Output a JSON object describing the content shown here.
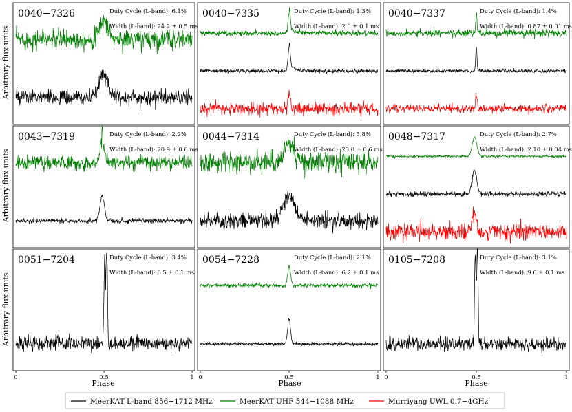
{
  "figure": {
    "ylabel": "Arbitrary flux units",
    "xlabel": "Phase",
    "xticks": [
      "0",
      "0.5",
      "1"
    ],
    "duty_label": "Duty Cycle (L-band):",
    "width_label": "Width (L-band):"
  },
  "legend": [
    {
      "name": "MeerKAT L-band 856−1712 MHz",
      "color": "#000000"
    },
    {
      "name": "MeerKAT UHF 544−1088 MHz",
      "color": "#008000"
    },
    {
      "name": "Murriyang UWL 0.7−4GHz",
      "color": "#ff0000"
    }
  ],
  "chart_data": [
    {
      "type": "line",
      "pulsar": "0040−7326",
      "duty_cycle": "6.1%",
      "width": "24.2 ± 0.5 ms",
      "xlim": [
        0,
        1
      ],
      "series": [
        {
          "band": "uhf",
          "color": "#008000",
          "peak": 0.5,
          "sigma": 0.022,
          "amp": 0.45,
          "noise": 0.32,
          "spike": 0
        },
        {
          "band": "l",
          "color": "#000000",
          "peak": 0.5,
          "sigma": 0.024,
          "amp": 0.95,
          "noise": 0.25,
          "spike": 0
        }
      ]
    },
    {
      "type": "line",
      "pulsar": "0040−7335",
      "duty_cycle": "1.3%",
      "width": "2.0 ± 0.1 ms",
      "xlim": [
        0,
        1
      ],
      "series": [
        {
          "band": "uhf",
          "color": "#008000",
          "peak": 0.5,
          "sigma": 0.006,
          "amp": 1.0,
          "noise": 0.09,
          "spike": 0,
          "tail": 0.03
        },
        {
          "band": "l",
          "color": "#000000",
          "peak": 0.5,
          "sigma": 0.006,
          "amp": 1.0,
          "noise": 0.06,
          "spike": 0,
          "tail": 0.03
        },
        {
          "band": "uwl",
          "color": "#ff0000",
          "peak": 0.5,
          "sigma": 0.006,
          "amp": 1.0,
          "noise": 0.2,
          "spike": 0
        }
      ]
    },
    {
      "type": "line",
      "pulsar": "0040−7337",
      "duty_cycle": "1.4%",
      "width": "0.87 ± 0.01 ms",
      "xlim": [
        0,
        1
      ],
      "series": [
        {
          "band": "uhf",
          "color": "#008000",
          "peak": 0.5,
          "sigma": 0.004,
          "amp": 1.0,
          "noise": 0.12,
          "spike": 0
        },
        {
          "band": "l",
          "color": "#000000",
          "peak": 0.5,
          "sigma": 0.004,
          "amp": 1.0,
          "noise": 0.05,
          "spike": 0
        },
        {
          "band": "uwl",
          "color": "#ff0000",
          "peak": 0.5,
          "sigma": 0.004,
          "amp": 1.0,
          "noise": 0.14,
          "spike": 0
        }
      ]
    },
    {
      "type": "line",
      "pulsar": "0043−7319",
      "duty_cycle": "2.2%",
      "width": "20.9 ± 0.6 ms",
      "xlim": [
        0,
        1
      ],
      "series": [
        {
          "band": "uhf",
          "color": "#008000",
          "peak": 0.49,
          "sigma": 0.012,
          "amp": 0.45,
          "noise": 0.24,
          "spike": 1.0
        },
        {
          "band": "l",
          "color": "#000000",
          "peak": 0.49,
          "sigma": 0.012,
          "amp": 1.0,
          "noise": 0.08,
          "spike": 0
        }
      ]
    },
    {
      "type": "line",
      "pulsar": "0044−7314",
      "duty_cycle": "5.8%",
      "width": "23.0 ± 0.6 ms",
      "xlim": [
        0,
        1
      ],
      "series": [
        {
          "band": "uhf",
          "color": "#008000",
          "peak": 0.5,
          "sigma": 0.03,
          "amp": 0.85,
          "noise": 0.35,
          "spike": 0
        },
        {
          "band": "l",
          "color": "#000000",
          "peak": 0.5,
          "sigma": 0.03,
          "amp": 1.0,
          "noise": 0.25,
          "spike": 0
        }
      ]
    },
    {
      "type": "line",
      "pulsar": "0048−7317",
      "duty_cycle": "2.7%",
      "width": "2.10 ± 0.04 ms",
      "xlim": [
        0,
        1
      ],
      "series": [
        {
          "band": "uhf",
          "color": "#008000",
          "peak": 0.49,
          "sigma": 0.013,
          "amp": 1.0,
          "noise": 0.04,
          "spike": 0
        },
        {
          "band": "l",
          "color": "#000000",
          "peak": 0.49,
          "sigma": 0.013,
          "amp": 1.0,
          "noise": 0.08,
          "spike": 0
        },
        {
          "band": "uwl",
          "color": "#ff0000",
          "peak": 0.49,
          "sigma": 0.013,
          "amp": 1.0,
          "noise": 0.28,
          "spike": 0
        }
      ]
    },
    {
      "type": "line",
      "pulsar": "0051−7204",
      "duty_cycle": "3.4%",
      "width": "6.5 ± 0.1 ms",
      "xlim": [
        0,
        1
      ],
      "series": [
        {
          "band": "l",
          "color": "#000000",
          "peak": 0.51,
          "sigma": 0.007,
          "amp": 1.0,
          "noise": 0.12,
          "spike": 0,
          "double": true
        }
      ]
    },
    {
      "type": "line",
      "pulsar": "0054−7228",
      "duty_cycle": "2.1%",
      "width": "6.2 ± 0.1 ms",
      "xlim": [
        0,
        1
      ],
      "series": [
        {
          "band": "uhf",
          "color": "#008000",
          "peak": 0.5,
          "sigma": 0.008,
          "amp": 1.0,
          "noise": 0.07,
          "spike": 0
        },
        {
          "band": "l",
          "color": "#000000",
          "peak": 0.5,
          "sigma": 0.008,
          "amp": 1.0,
          "noise": 0.05,
          "spike": 0
        }
      ]
    },
    {
      "type": "line",
      "pulsar": "0105−7208",
      "duty_cycle": "3.1%",
      "width": "9.6 ± 0.1 ms",
      "xlim": [
        0,
        1
      ],
      "series": [
        {
          "band": "l",
          "color": "#000000",
          "peak": 0.5,
          "sigma": 0.007,
          "amp": 1.0,
          "noise": 0.12,
          "spike": 0,
          "double": true
        }
      ]
    }
  ]
}
